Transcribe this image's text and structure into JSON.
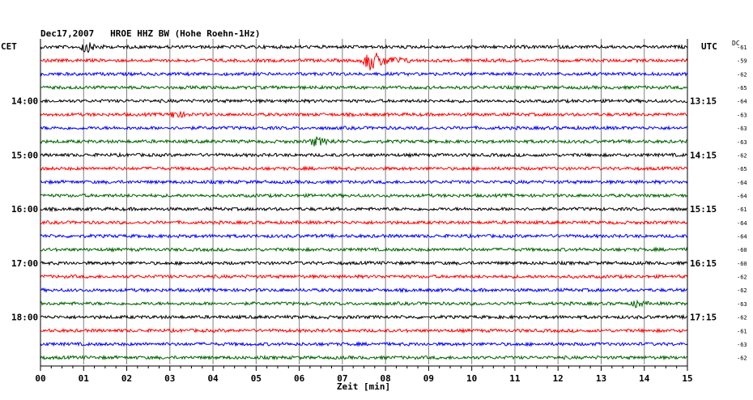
{
  "header": {
    "title": "Dec17,2007   HROE HHZ BW (Hohe Roehn-1Hz)",
    "left_label": "CET",
    "right_label": "UTC",
    "dc_label": "DC"
  },
  "colors": {
    "trace_cycle": [
      "#000000",
      "#ff0000",
      "#0000ff",
      "#006400"
    ],
    "grid": "#808080",
    "text": "#000000"
  },
  "chart_data": {
    "type": "line",
    "title": "Dec17,2007   HROE HHZ BW (Hohe Roehn-1Hz)",
    "xlabel": "Zeit [min]",
    "ylabel": "",
    "xlim": [
      0,
      15
    ],
    "x_ticks": [
      "00",
      "01",
      "02",
      "03",
      "04",
      "05",
      "06",
      "07",
      "08",
      "09",
      "10",
      "11",
      "12",
      "13",
      "14",
      "15"
    ],
    "left_hour_labels": [
      {
        "trace": 4,
        "label": "14:00"
      },
      {
        "trace": 8,
        "label": "15:00"
      },
      {
        "trace": 12,
        "label": "16:00"
      },
      {
        "trace": 16,
        "label": "17:00"
      },
      {
        "trace": 20,
        "label": "18:00"
      }
    ],
    "right_hour_labels": [
      {
        "trace": 4,
        "label": "13:15"
      },
      {
        "trace": 8,
        "label": "14:15"
      },
      {
        "trace": 12,
        "label": "15:15"
      },
      {
        "trace": 16,
        "label": "16:15"
      },
      {
        "trace": 20,
        "label": "17:15"
      }
    ],
    "dc_offsets": [
      "-61",
      "-59",
      "-62",
      "-65",
      "-64",
      "-63",
      "-63",
      "-63",
      "-62",
      "-65",
      "-64",
      "-64",
      "-61",
      "-64",
      "-64",
      "-60",
      "-60",
      "-62",
      "-62",
      "-63",
      "-62",
      "-61",
      "-63",
      "-62"
    ],
    "traces": 24,
    "events": [
      {
        "trace": 0,
        "start_min": 0.9,
        "end_min": 1.5,
        "amplitude": "medium"
      },
      {
        "trace": 1,
        "start_min": 7.4,
        "end_min": 8.6,
        "amplitude": "large"
      },
      {
        "trace": 5,
        "start_min": 3.0,
        "end_min": 3.5,
        "amplitude": "small"
      },
      {
        "trace": 7,
        "start_min": 6.2,
        "end_min": 7.0,
        "amplitude": "small"
      },
      {
        "trace": 19,
        "start_min": 13.7,
        "end_min": 14.1,
        "amplitude": "small"
      }
    ]
  }
}
